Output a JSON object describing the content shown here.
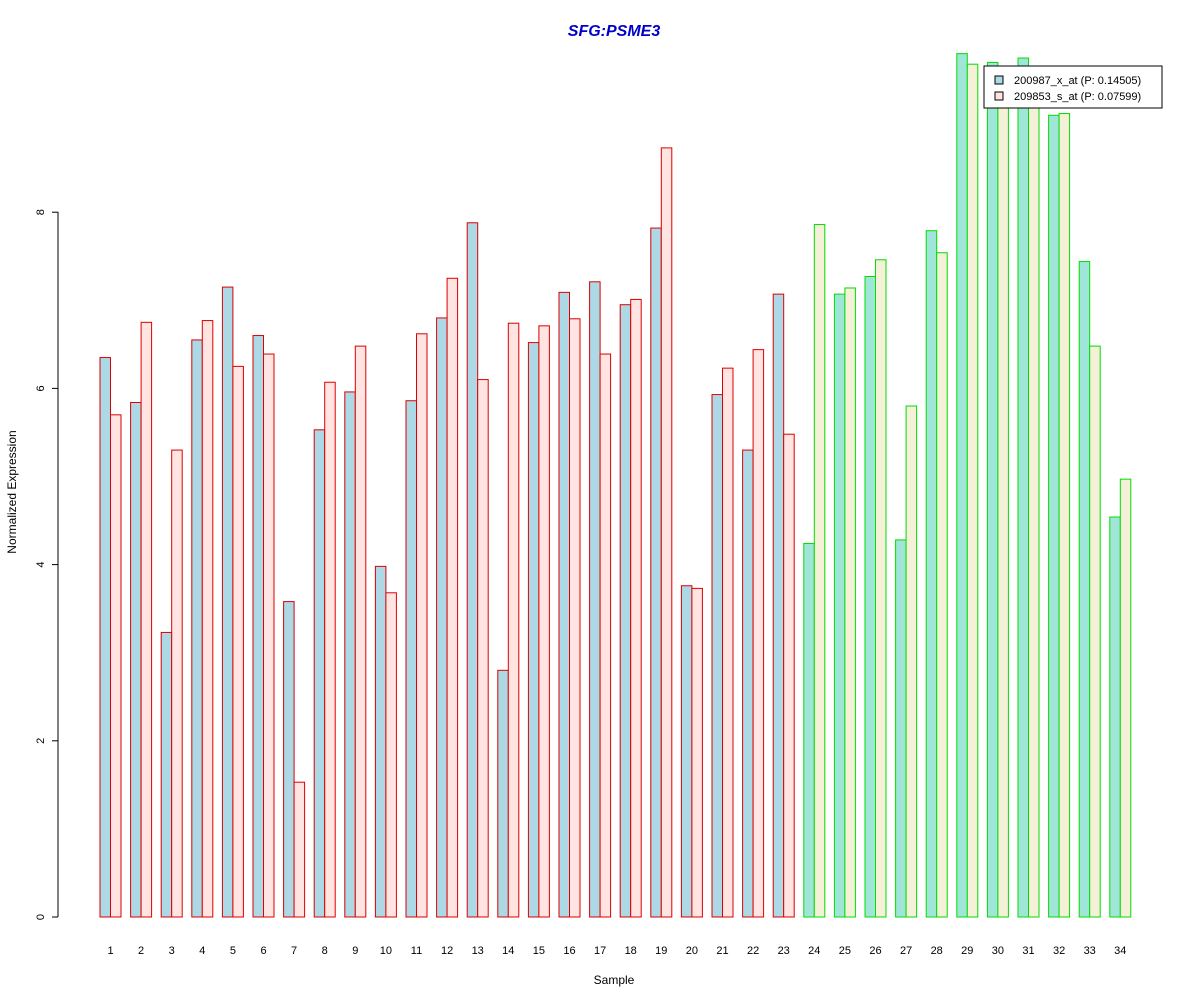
{
  "chart_data": {
    "type": "bar",
    "title": "SFG:PSME3",
    "xlabel": "Sample",
    "ylabel": "Normalized Expression",
    "ylim": [
      0,
      10
    ],
    "yticks": [
      0,
      2,
      4,
      6,
      8
    ],
    "grid": false,
    "legend_position": "top-right",
    "categories": [
      "1",
      "2",
      "3",
      "4",
      "5",
      "6",
      "7",
      "8",
      "9",
      "10",
      "11",
      "12",
      "13",
      "14",
      "15",
      "16",
      "17",
      "18",
      "19",
      "20",
      "21",
      "22",
      "23",
      "24",
      "25",
      "26",
      "27",
      "28",
      "29",
      "30",
      "31",
      "32",
      "33",
      "34"
    ],
    "groups": [
      {
        "samples": "1-23",
        "border_color": "#dd0000",
        "series_fill": [
          "#add8e6",
          "#ffe4e1"
        ]
      },
      {
        "samples": "24-34",
        "border_color": "#00dd00",
        "series_fill": [
          "#a0e6d8",
          "#f5f0d8"
        ]
      }
    ],
    "series": [
      {
        "name": "200987_x_at (P: 0.14505)",
        "values": [
          6.35,
          5.84,
          3.23,
          6.55,
          7.15,
          6.6,
          3.58,
          5.53,
          5.96,
          3.98,
          5.86,
          6.8,
          7.88,
          2.8,
          6.52,
          7.09,
          7.21,
          6.95,
          7.82,
          3.76,
          5.93,
          5.3,
          7.07,
          4.24,
          7.07,
          7.27,
          4.28,
          7.79,
          9.8,
          9.7,
          9.75,
          9.1,
          7.44,
          4.54
        ]
      },
      {
        "name": "209853_s_at (P: 0.07599)",
        "values": [
          5.7,
          6.75,
          5.3,
          6.77,
          6.25,
          6.39,
          1.53,
          6.07,
          6.48,
          3.68,
          6.62,
          7.25,
          6.1,
          6.74,
          6.71,
          6.79,
          6.39,
          7.01,
          8.73,
          3.73,
          6.23,
          6.44,
          5.48,
          7.86,
          7.14,
          7.46,
          5.8,
          7.54,
          9.68,
          9.6,
          9.5,
          9.12,
          6.48,
          4.97
        ]
      }
    ]
  }
}
